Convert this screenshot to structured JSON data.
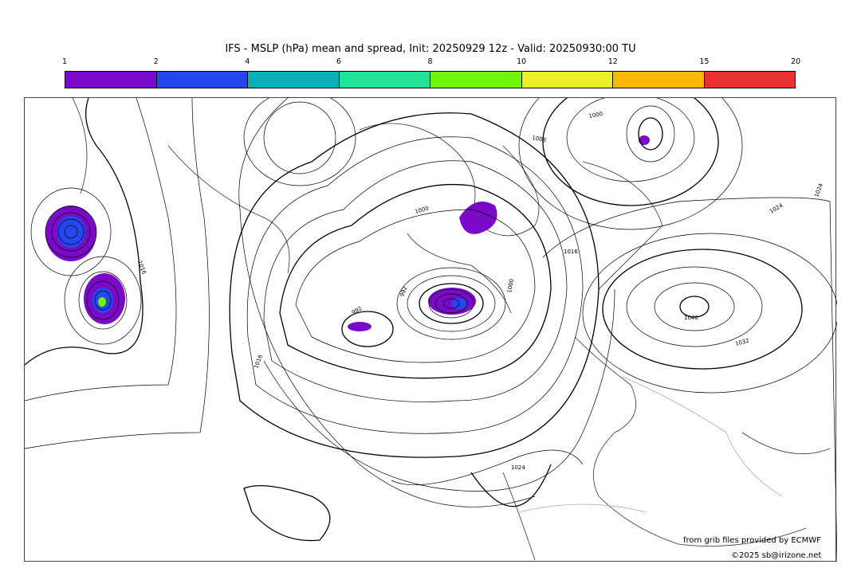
{
  "title": "IFS - MSLP (hPa) mean and spread, Init: 20250929 12z - Valid: 20250930:00 TU",
  "colorbar": {
    "ticks": [
      "1",
      "2",
      "4",
      "6",
      "8",
      "10",
      "12",
      "15",
      "20"
    ],
    "colors": [
      "#7b0ac8",
      "#2448ee",
      "#0aafba",
      "#26e098",
      "#6ff70a",
      "#ecf024",
      "#fdb708",
      "#e83232"
    ]
  },
  "contour_labels": [
    "1016",
    "1000",
    "992",
    "992",
    "1000",
    "1040",
    "1032",
    "1024",
    "1016",
    "1024",
    "1008",
    "1000",
    "1016",
    "1024"
  ],
  "credits": {
    "source": "from grib files provided by ECMWF",
    "copyright": "©2025 sb@irizone.net"
  }
}
